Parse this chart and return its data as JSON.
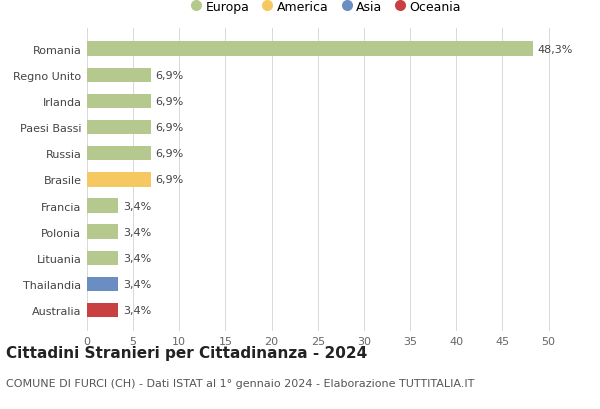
{
  "countries": [
    "Romania",
    "Regno Unito",
    "Irlanda",
    "Paesi Bassi",
    "Russia",
    "Brasile",
    "Francia",
    "Polonia",
    "Lituania",
    "Thailandia",
    "Australia"
  ],
  "values": [
    48.3,
    6.9,
    6.9,
    6.9,
    6.9,
    6.9,
    3.4,
    3.4,
    3.4,
    3.4,
    3.4
  ],
  "colors": [
    "#b5c98e",
    "#b5c98e",
    "#b5c98e",
    "#b5c98e",
    "#b5c98e",
    "#f5c862",
    "#b5c98e",
    "#b5c98e",
    "#b5c98e",
    "#6b8ec2",
    "#c94040"
  ],
  "legend": [
    {
      "label": "Europa",
      "color": "#b5c98e"
    },
    {
      "label": "America",
      "color": "#f5c862"
    },
    {
      "label": "Asia",
      "color": "#6b8ec2"
    },
    {
      "label": "Oceania",
      "color": "#c94040"
    }
  ],
  "xlim": [
    0,
    52
  ],
  "xticks": [
    0,
    5,
    10,
    15,
    20,
    25,
    30,
    35,
    40,
    45,
    50
  ],
  "title": "Cittadini Stranieri per Cittadinanza - 2024",
  "subtitle": "COMUNE DI FURCI (CH) - Dati ISTAT al 1° gennaio 2024 - Elaborazione TUTTITALIA.IT",
  "title_fontsize": 11,
  "subtitle_fontsize": 8,
  "bar_height": 0.55,
  "background_color": "#ffffff",
  "grid_color": "#d8d8d8",
  "label_fontsize": 8,
  "tick_fontsize": 8,
  "legend_fontsize": 9,
  "legend_marker_size": 9
}
